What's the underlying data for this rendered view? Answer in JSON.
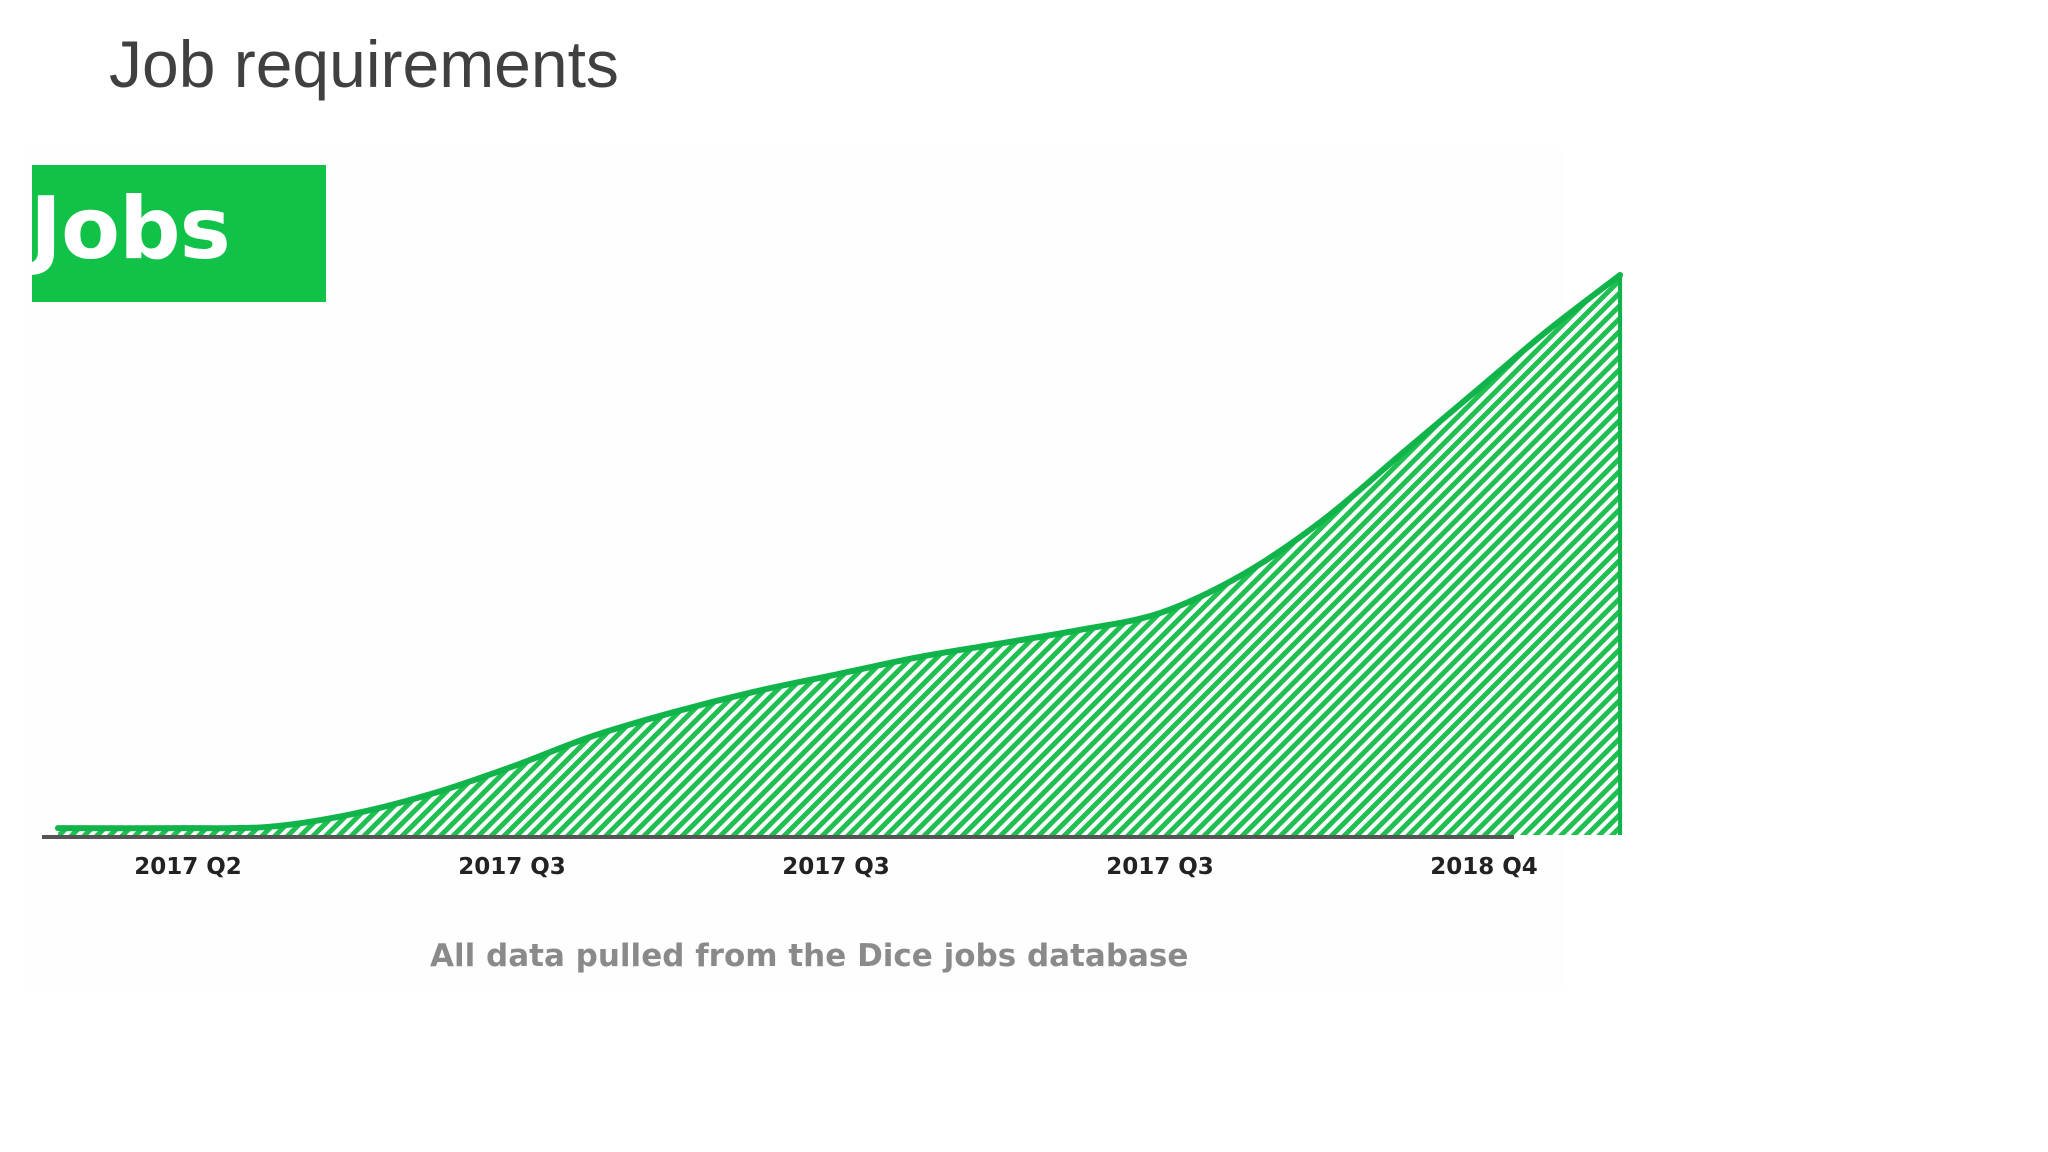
{
  "slide": {
    "title": "Job requirements"
  },
  "chart_data": {
    "type": "area",
    "title": "Jobs",
    "categories": [
      "2017 Q2",
      "2017 Q3",
      "2017 Q3",
      "2017 Q3",
      "2018 Q4"
    ],
    "series": [
      {
        "x": [
          0,
          0.25,
          0.5,
          0.75,
          1.0,
          1.25,
          1.5,
          1.75,
          2.0,
          2.25,
          2.5,
          2.75,
          3.0,
          3.25,
          3.5,
          3.75,
          4.0,
          4.2,
          4.42
        ],
        "values": [
          1,
          1.2,
          3,
          6,
          10,
          14.5,
          18,
          21,
          23.5,
          26,
          28,
          30,
          32.5,
          38,
          46,
          56,
          66,
          74,
          82
        ]
      }
    ],
    "ylim": [
      0,
      100
    ],
    "grid": false,
    "legend": "none",
    "colors": {
      "line": "#10b44a",
      "fill_stripe": "#1fbf52",
      "axis": "#555555",
      "badge": "#10c248"
    },
    "caption": "All data pulled from the Dice jobs database"
  }
}
